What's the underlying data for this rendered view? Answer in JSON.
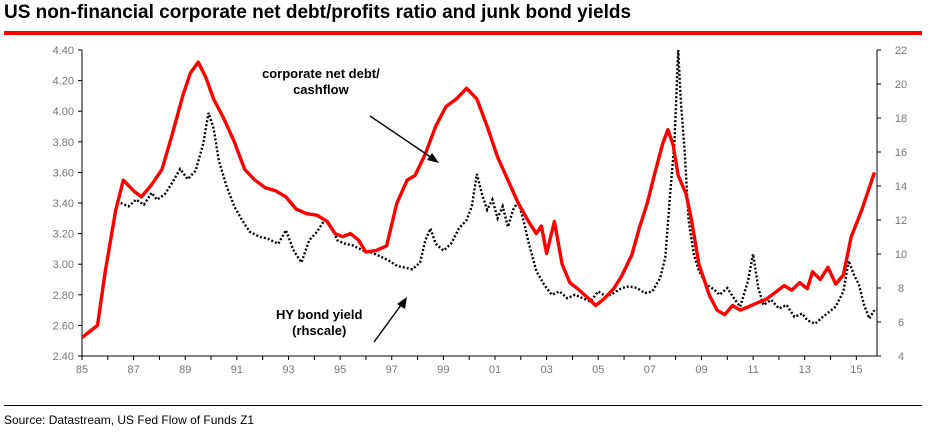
{
  "title": "US non-financial corporate net debt/profits ratio and junk bond yields",
  "source": "Source: Datastream, US Fed Flow of Funds Z1",
  "annotations": {
    "debt_label_line1": "corporate net debt/",
    "debt_label_line2": "cashflow",
    "hy_label_line1": "HY bond yield",
    "hy_label_line2": "(rhscale)"
  },
  "colors": {
    "debt_line": "#ff0000",
    "hy_line": "#000000",
    "title_bar": "#ff0000"
  },
  "chart_data": {
    "type": "line",
    "title": "US non-financial corporate net debt/profits ratio and junk bond yields",
    "xlabel": "",
    "ylabel": "",
    "xlim": [
      1985,
      2015.8
    ],
    "x_tick_labels": [
      "85",
      "87",
      "89",
      "91",
      "93",
      "95",
      "97",
      "99",
      "01",
      "03",
      "05",
      "07",
      "09",
      "11",
      "13",
      "15"
    ],
    "y_left": {
      "lim": [
        2.4,
        4.4
      ],
      "ticks": [
        "2.40",
        "2.60",
        "2.80",
        "3.00",
        "3.20",
        "3.40",
        "3.60",
        "3.80",
        "4.00",
        "4.20",
        "4.40"
      ]
    },
    "y_right": {
      "lim": [
        4,
        22
      ],
      "ticks": [
        "4",
        "6",
        "8",
        "10",
        "12",
        "14",
        "16",
        "18",
        "20",
        "22"
      ]
    },
    "grid": false,
    "legend": "none (inline annotations)",
    "series": [
      {
        "name": "corporate net debt/cashflow",
        "axis": "left",
        "style": "solid",
        "points": [
          [
            1985.0,
            2.52
          ],
          [
            1985.3,
            2.56
          ],
          [
            1985.6,
            2.6
          ],
          [
            1985.9,
            2.95
          ],
          [
            1986.3,
            3.35
          ],
          [
            1986.6,
            3.55
          ],
          [
            1987.0,
            3.48
          ],
          [
            1987.3,
            3.44
          ],
          [
            1987.7,
            3.52
          ],
          [
            1988.1,
            3.62
          ],
          [
            1988.5,
            3.85
          ],
          [
            1988.9,
            4.1
          ],
          [
            1989.2,
            4.25
          ],
          [
            1989.5,
            4.32
          ],
          [
            1989.8,
            4.22
          ],
          [
            1990.1,
            4.08
          ],
          [
            1990.5,
            3.95
          ],
          [
            1990.9,
            3.8
          ],
          [
            1991.3,
            3.62
          ],
          [
            1991.7,
            3.55
          ],
          [
            1992.1,
            3.5
          ],
          [
            1992.5,
            3.48
          ],
          [
            1992.9,
            3.44
          ],
          [
            1993.3,
            3.36
          ],
          [
            1993.7,
            3.33
          ],
          [
            1994.1,
            3.32
          ],
          [
            1994.5,
            3.28
          ],
          [
            1994.8,
            3.2
          ],
          [
            1995.1,
            3.18
          ],
          [
            1995.4,
            3.2
          ],
          [
            1995.7,
            3.16
          ],
          [
            1996.0,
            3.08
          ],
          [
            1996.4,
            3.09
          ],
          [
            1996.8,
            3.12
          ],
          [
            1997.2,
            3.4
          ],
          [
            1997.6,
            3.55
          ],
          [
            1997.9,
            3.58
          ],
          [
            1998.3,
            3.72
          ],
          [
            1998.7,
            3.9
          ],
          [
            1999.1,
            4.03
          ],
          [
            1999.5,
            4.08
          ],
          [
            1999.9,
            4.15
          ],
          [
            2000.3,
            4.08
          ],
          [
            2000.7,
            3.9
          ],
          [
            2001.1,
            3.7
          ],
          [
            2001.5,
            3.55
          ],
          [
            2001.9,
            3.4
          ],
          [
            2002.3,
            3.28
          ],
          [
            2002.6,
            3.2
          ],
          [
            2002.8,
            3.25
          ],
          [
            2003.0,
            3.07
          ],
          [
            2003.3,
            3.28
          ],
          [
            2003.6,
            3.0
          ],
          [
            2003.9,
            2.88
          ],
          [
            2004.2,
            2.84
          ],
          [
            2004.6,
            2.78
          ],
          [
            2004.9,
            2.73
          ],
          [
            2005.2,
            2.77
          ],
          [
            2005.6,
            2.84
          ],
          [
            2005.9,
            2.92
          ],
          [
            2006.3,
            3.06
          ],
          [
            2006.6,
            3.24
          ],
          [
            2006.9,
            3.4
          ],
          [
            2007.2,
            3.6
          ],
          [
            2007.5,
            3.79
          ],
          [
            2007.7,
            3.88
          ],
          [
            2007.9,
            3.78
          ],
          [
            2008.1,
            3.58
          ],
          [
            2008.4,
            3.46
          ],
          [
            2008.6,
            3.3
          ],
          [
            2008.9,
            3.0
          ],
          [
            2009.3,
            2.8
          ],
          [
            2009.6,
            2.7
          ],
          [
            2009.9,
            2.67
          ],
          [
            2010.2,
            2.73
          ],
          [
            2010.5,
            2.7
          ],
          [
            2010.8,
            2.72
          ],
          [
            2011.2,
            2.75
          ],
          [
            2011.5,
            2.77
          ],
          [
            2011.9,
            2.82
          ],
          [
            2012.2,
            2.86
          ],
          [
            2012.5,
            2.83
          ],
          [
            2012.8,
            2.88
          ],
          [
            2013.1,
            2.84
          ],
          [
            2013.3,
            2.95
          ],
          [
            2013.6,
            2.9
          ],
          [
            2013.9,
            2.98
          ],
          [
            2014.2,
            2.87
          ],
          [
            2014.5,
            2.93
          ],
          [
            2014.8,
            3.18
          ],
          [
            2015.2,
            3.35
          ],
          [
            2015.5,
            3.5
          ],
          [
            2015.7,
            3.6
          ]
        ]
      },
      {
        "name": "HY bond yield",
        "axis": "right",
        "style": "dotted",
        "points": [
          [
            1986.5,
            13.0
          ],
          [
            1986.8,
            12.8
          ],
          [
            1987.1,
            13.2
          ],
          [
            1987.4,
            12.9
          ],
          [
            1987.7,
            13.6
          ],
          [
            1987.9,
            13.2
          ],
          [
            1988.2,
            13.5
          ],
          [
            1988.5,
            14.2
          ],
          [
            1988.8,
            15.0
          ],
          [
            1989.1,
            14.4
          ],
          [
            1989.4,
            14.9
          ],
          [
            1989.7,
            16.5
          ],
          [
            1989.9,
            18.3
          ],
          [
            1990.1,
            17.4
          ],
          [
            1990.3,
            15.5
          ],
          [
            1990.6,
            14.0
          ],
          [
            1990.9,
            12.8
          ],
          [
            1991.2,
            12.0
          ],
          [
            1991.5,
            11.3
          ],
          [
            1991.9,
            11.0
          ],
          [
            1992.2,
            10.9
          ],
          [
            1992.6,
            10.6
          ],
          [
            1992.9,
            11.4
          ],
          [
            1993.2,
            10.2
          ],
          [
            1993.5,
            9.5
          ],
          [
            1993.8,
            10.8
          ],
          [
            1994.1,
            11.3
          ],
          [
            1994.4,
            12.0
          ],
          [
            1994.7,
            11.5
          ],
          [
            1994.9,
            10.8
          ],
          [
            1995.2,
            10.6
          ],
          [
            1995.5,
            10.5
          ],
          [
            1995.9,
            10.2
          ],
          [
            1996.2,
            10.1
          ],
          [
            1996.5,
            9.9
          ],
          [
            1996.9,
            9.6
          ],
          [
            1997.2,
            9.3
          ],
          [
            1997.5,
            9.2
          ],
          [
            1997.8,
            9.1
          ],
          [
            1998.1,
            9.5
          ],
          [
            1998.3,
            10.8
          ],
          [
            1998.5,
            11.5
          ],
          [
            1998.7,
            10.6
          ],
          [
            1999.0,
            10.2
          ],
          [
            1999.3,
            10.6
          ],
          [
            1999.6,
            11.5
          ],
          [
            1999.9,
            12.0
          ],
          [
            2000.1,
            12.8
          ],
          [
            2000.3,
            14.7
          ],
          [
            2000.5,
            13.5
          ],
          [
            2000.7,
            12.6
          ],
          [
            2000.9,
            13.2
          ],
          [
            2001.1,
            12.1
          ],
          [
            2001.3,
            12.8
          ],
          [
            2001.5,
            11.6
          ],
          [
            2001.7,
            12.6
          ],
          [
            2001.9,
            13.1
          ],
          [
            2002.1,
            12.0
          ],
          [
            2002.3,
            10.7
          ],
          [
            2002.6,
            9.0
          ],
          [
            2002.9,
            8.2
          ],
          [
            2003.2,
            7.6
          ],
          [
            2003.5,
            7.8
          ],
          [
            2003.8,
            7.4
          ],
          [
            2004.1,
            7.6
          ],
          [
            2004.4,
            7.4
          ],
          [
            2004.7,
            7.2
          ],
          [
            2005.0,
            7.8
          ],
          [
            2005.3,
            7.5
          ],
          [
            2005.6,
            7.7
          ],
          [
            2005.9,
            8.0
          ],
          [
            2006.2,
            8.1
          ],
          [
            2006.5,
            8.0
          ],
          [
            2006.8,
            7.7
          ],
          [
            2007.1,
            7.8
          ],
          [
            2007.4,
            8.6
          ],
          [
            2007.6,
            9.8
          ],
          [
            2007.8,
            13.8
          ],
          [
            2007.95,
            16.5
          ],
          [
            2008.1,
            22.0
          ],
          [
            2008.2,
            19.0
          ],
          [
            2008.35,
            16.0
          ],
          [
            2008.5,
            12.0
          ],
          [
            2008.7,
            10.0
          ],
          [
            2008.9,
            9.0
          ],
          [
            2009.2,
            8.2
          ],
          [
            2009.5,
            7.9
          ],
          [
            2009.7,
            7.6
          ],
          [
            2010.0,
            8.0
          ],
          [
            2010.3,
            7.3
          ],
          [
            2010.5,
            6.9
          ],
          [
            2010.8,
            8.4
          ],
          [
            2011.0,
            10.0
          ],
          [
            2011.2,
            8.0
          ],
          [
            2011.4,
            7.0
          ],
          [
            2011.7,
            7.3
          ],
          [
            2012.0,
            6.8
          ],
          [
            2012.3,
            7.0
          ],
          [
            2012.6,
            6.3
          ],
          [
            2012.9,
            6.5
          ],
          [
            2013.1,
            6.1
          ],
          [
            2013.4,
            5.9
          ],
          [
            2013.7,
            6.3
          ],
          [
            2013.95,
            6.6
          ],
          [
            2014.2,
            6.9
          ],
          [
            2014.5,
            7.8
          ],
          [
            2014.7,
            9.6
          ],
          [
            2014.9,
            8.8
          ],
          [
            2015.1,
            8.2
          ],
          [
            2015.3,
            7.0
          ],
          [
            2015.5,
            6.2
          ],
          [
            2015.7,
            6.7
          ]
        ]
      }
    ]
  }
}
